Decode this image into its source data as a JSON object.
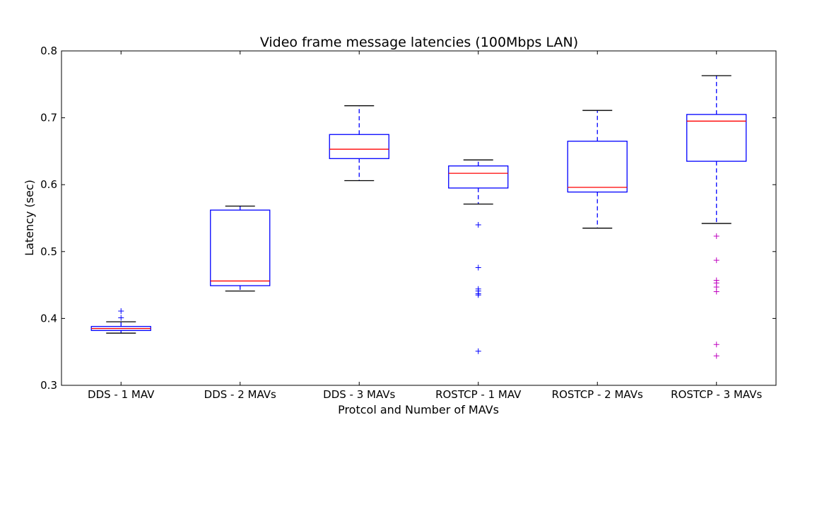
{
  "chart_data": {
    "type": "boxplot",
    "title": "Video frame message latencies (100Mbps LAN)",
    "xlabel": "Protcol and Number of MAVs",
    "ylabel": "Latency (sec)",
    "ylim": [
      0.3,
      0.8
    ],
    "yticks": [
      0.3,
      0.4,
      0.5,
      0.6,
      0.7,
      0.8
    ],
    "ytick_labels": [
      "0.3",
      "0.4",
      "0.5",
      "0.6",
      "0.7",
      "0.8"
    ],
    "categories": [
      "DDS - 1 MAV",
      "DDS - 2 MAVs",
      "DDS - 3 MAVs",
      "ROSTCP - 1 MAV",
      "ROSTCP - 2 MAVs",
      "ROSTCP - 3 MAVs"
    ],
    "boxes": [
      {
        "label": "DDS - 1 MAV",
        "whisker_low": 0.378,
        "q1": 0.382,
        "median": 0.385,
        "q3": 0.388,
        "whisker_high": 0.395,
        "outliers": [
          0.401,
          0.411
        ],
        "outlier_color": "#0000ff"
      },
      {
        "label": "DDS - 2 MAVs",
        "whisker_low": 0.441,
        "q1": 0.449,
        "median": 0.456,
        "q3": 0.562,
        "whisker_high": 0.568,
        "outliers": [],
        "outlier_color": "#0000ff"
      },
      {
        "label": "DDS - 3 MAVs",
        "whisker_low": 0.606,
        "q1": 0.639,
        "median": 0.653,
        "q3": 0.675,
        "whisker_high": 0.718,
        "outliers": [],
        "outlier_color": "#0000ff"
      },
      {
        "label": "ROSTCP - 1 MAV",
        "whisker_low": 0.571,
        "q1": 0.595,
        "median": 0.617,
        "q3": 0.628,
        "whisker_high": 0.637,
        "outliers": [
          0.54,
          0.476,
          0.444,
          0.441,
          0.437,
          0.435,
          0.351
        ],
        "outlier_color": "#0000ff"
      },
      {
        "label": "ROSTCP - 2 MAVs",
        "whisker_low": 0.535,
        "q1": 0.589,
        "median": 0.596,
        "q3": 0.665,
        "whisker_high": 0.711,
        "outliers": [],
        "outlier_color": "#0000ff"
      },
      {
        "label": "ROSTCP - 3 MAVs",
        "whisker_low": 0.542,
        "q1": 0.635,
        "median": 0.695,
        "q3": 0.705,
        "whisker_high": 0.763,
        "outliers": [
          0.523,
          0.487,
          0.457,
          0.453,
          0.447,
          0.44,
          0.361,
          0.344
        ],
        "outlier_color": "#bf00bf"
      }
    ],
    "colors": {
      "box": "#0000ff",
      "median": "#ff0000",
      "caps": "#000000",
      "whisker": "#0000ff",
      "frame": "#000000"
    },
    "grid": false
  }
}
